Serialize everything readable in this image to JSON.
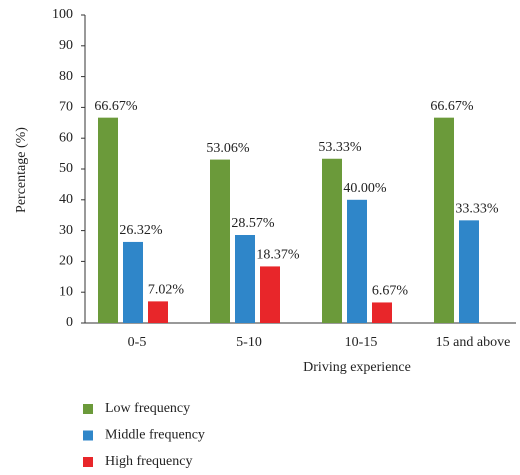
{
  "chart_data": {
    "type": "bar",
    "categories": [
      "0-5",
      "5-10",
      "10-15",
      "15 and above"
    ],
    "series": [
      {
        "name": "Low frequency",
        "color": "#6b9a3a",
        "values": [
          66.67,
          53.06,
          53.33,
          66.67
        ],
        "value_labels": [
          "66.67%",
          "53.06%",
          "53.33%",
          "66.67%"
        ]
      },
      {
        "name": "Middle frequency",
        "color": "#2f86c9",
        "values": [
          26.32,
          28.57,
          40.0,
          33.33
        ],
        "value_labels": [
          "26.32%",
          "28.57%",
          "40.00%",
          "33.33%"
        ]
      },
      {
        "name": "High frequency",
        "color": "#e8262a",
        "values": [
          7.02,
          18.37,
          6.67,
          null
        ],
        "value_labels": [
          "7.02%",
          "18.37%",
          "6.67%",
          null
        ]
      }
    ],
    "xlabel": "Driving experience",
    "ylabel": "Percentage (%)",
    "ylim": [
      0,
      100
    ],
    "yticks": [
      0,
      10,
      20,
      30,
      40,
      50,
      60,
      70,
      80,
      90,
      100
    ],
    "grid": false,
    "legend": "bottom"
  }
}
